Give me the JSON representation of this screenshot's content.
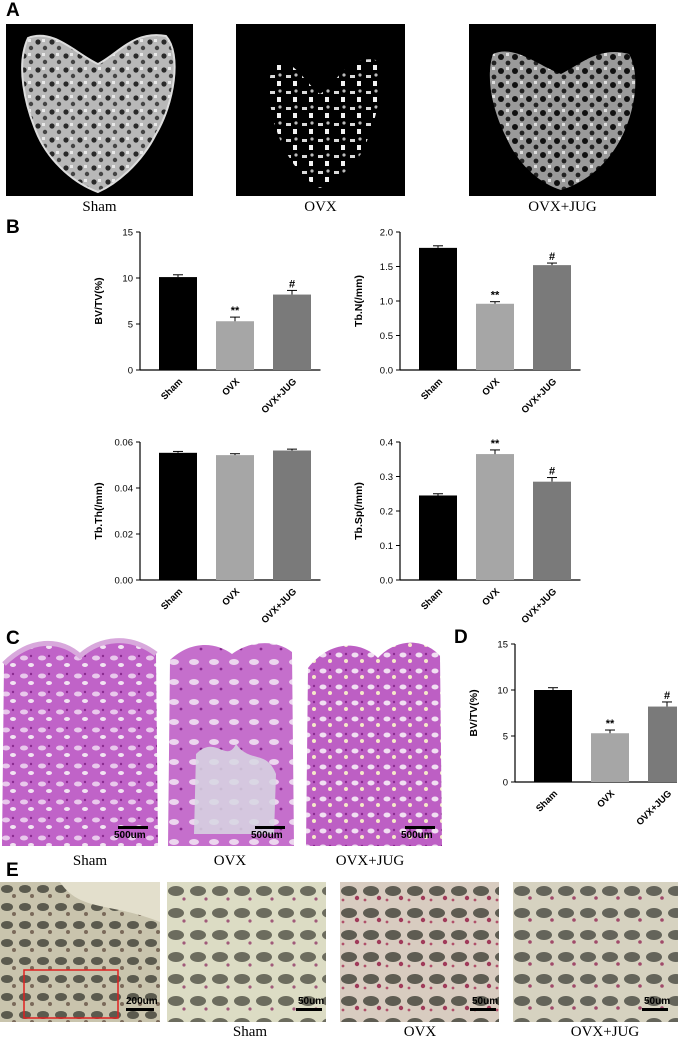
{
  "panels": {
    "a": {
      "letter": "A",
      "captions": [
        "Sham",
        "OVX",
        "OVX+JUG"
      ]
    },
    "b": {
      "letter": "B"
    },
    "c": {
      "letter": "C",
      "scale_label": "500um",
      "captions": [
        "Sham",
        "OVX",
        "OVX+JUG"
      ]
    },
    "d": {
      "letter": "D"
    },
    "e": {
      "letter": "E",
      "scale_labels": [
        "200um",
        "50um",
        "50um",
        "50um"
      ],
      "captions": [
        "Sham",
        "OVX",
        "OVX+JUG"
      ]
    }
  },
  "chart_data": [
    {
      "id": "bvtv",
      "type": "bar",
      "categories": [
        "Sham",
        "OVX",
        "OVX+JUG"
      ],
      "values": [
        10.1,
        5.3,
        8.2
      ],
      "errors": [
        0.25,
        0.45,
        0.45
      ],
      "annotations": [
        "",
        "**",
        "#"
      ],
      "ylabel": "BV/TV(%)",
      "ylim": [
        0,
        15
      ],
      "yticks": [
        0,
        5,
        10,
        15
      ],
      "ytick_labels": [
        "0",
        "5",
        "10",
        "15"
      ],
      "colors": [
        "#000000",
        "#a6a6a6",
        "#7a7a7a"
      ]
    },
    {
      "id": "tbn",
      "type": "bar",
      "categories": [
        "Sham",
        "OVX",
        "OVX+JUG"
      ],
      "values": [
        1.77,
        0.96,
        1.52
      ],
      "errors": [
        0.03,
        0.03,
        0.03
      ],
      "annotations": [
        "",
        "**",
        "#"
      ],
      "ylabel": "Tb.N(/mm)",
      "ylim": [
        0,
        2.0
      ],
      "yticks": [
        0,
        0.5,
        1.0,
        1.5,
        2.0
      ],
      "ytick_labels": [
        "0.0",
        "0.5",
        "1.0",
        "1.5",
        "2.0"
      ],
      "colors": [
        "#000000",
        "#a6a6a6",
        "#7a7a7a"
      ]
    },
    {
      "id": "tbth",
      "type": "bar",
      "categories": [
        "Sham",
        "OVX",
        "OVX+JUG"
      ],
      "values": [
        0.0553,
        0.0543,
        0.0563
      ],
      "errors": [
        0.0006,
        0.0006,
        0.0006
      ],
      "annotations": [
        "",
        "",
        ""
      ],
      "ylabel": "Tb.Th(/mm)",
      "ylim": [
        0,
        0.06
      ],
      "yticks": [
        0,
        0.02,
        0.04,
        0.06
      ],
      "ytick_labels": [
        "0.00",
        "0.02",
        "0.04",
        "0.06"
      ],
      "colors": [
        "#000000",
        "#a6a6a6",
        "#7a7a7a"
      ]
    },
    {
      "id": "tbsp",
      "type": "bar",
      "categories": [
        "Sham",
        "OVX",
        "OVX+JUG"
      ],
      "values": [
        0.245,
        0.365,
        0.285
      ],
      "errors": [
        0.005,
        0.012,
        0.012
      ],
      "annotations": [
        "",
        "**",
        "#"
      ],
      "ylabel": "Tb.Sp(/mm)",
      "ylim": [
        0,
        0.4
      ],
      "yticks": [
        0,
        0.1,
        0.2,
        0.3,
        0.4
      ],
      "ytick_labels": [
        "0.0",
        "0.1",
        "0.2",
        "0.3",
        "0.4"
      ],
      "colors": [
        "#000000",
        "#a6a6a6",
        "#7a7a7a"
      ]
    },
    {
      "id": "bvtv_d",
      "type": "bar",
      "categories": [
        "Sham",
        "OVX",
        "OVX+JUG"
      ],
      "values": [
        10.0,
        5.3,
        8.2
      ],
      "errors": [
        0.25,
        0.35,
        0.5
      ],
      "annotations": [
        "",
        "**",
        "#"
      ],
      "ylabel": "BV/TV(%)",
      "ylim": [
        0,
        15
      ],
      "yticks": [
        0,
        5,
        10,
        15
      ],
      "ytick_labels": [
        "0",
        "5",
        "10",
        "15"
      ],
      "colors": [
        "#000000",
        "#a6a6a6",
        "#7a7a7a"
      ]
    }
  ]
}
